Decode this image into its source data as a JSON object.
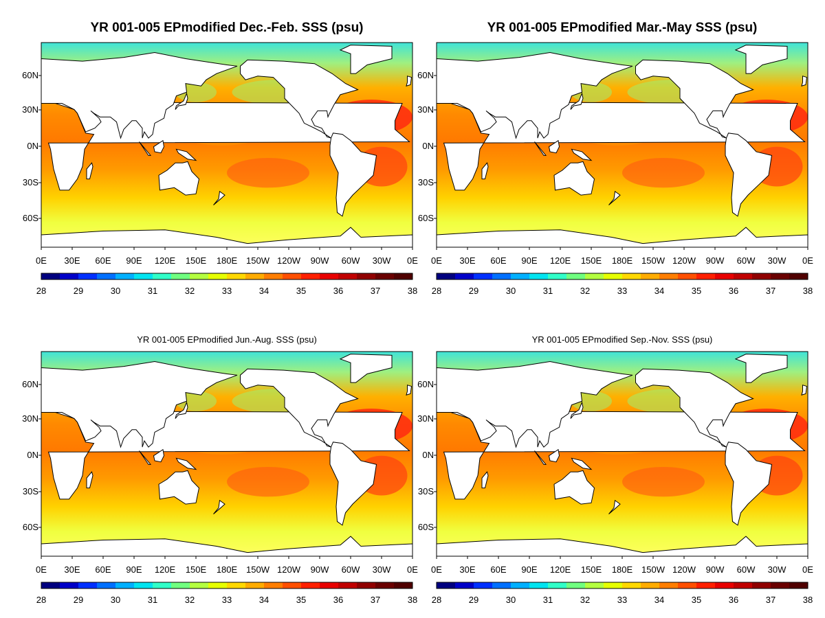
{
  "panels": [
    {
      "title": "YR 001-005 EPmodified Dec.-Feb. SSS (psu)",
      "title_style": "big"
    },
    {
      "title": "YR 001-005 EPmodified Mar.-May SSS (psu)",
      "title_style": "big"
    },
    {
      "title": "YR 001-005 EPmodified Jun.-Aug. SSS (psu)",
      "title_style": "small"
    },
    {
      "title": "YR 001-005 EPmodified Sep.-Nov. SSS (psu)",
      "title_style": "small"
    }
  ],
  "lat_ticks": [
    "60N",
    "30N",
    "0N",
    "30S",
    "60S"
  ],
  "lon_ticks": [
    "0E",
    "30E",
    "60E",
    "90E",
    "120E",
    "150E",
    "180E",
    "150W",
    "120W",
    "90W",
    "60W",
    "30W",
    "0E"
  ],
  "colorbar": {
    "labels": [
      "28",
      "29",
      "30",
      "31",
      "32",
      "33",
      "34",
      "35",
      "36",
      "37",
      "38"
    ],
    "colors": [
      "#00007f",
      "#0000c8",
      "#0030ff",
      "#0070ff",
      "#00b0ff",
      "#00e4f0",
      "#30ffc8",
      "#70ff80",
      "#b4ff40",
      "#e6ff00",
      "#ffd800",
      "#ffac00",
      "#ff7e00",
      "#ff5000",
      "#ff2000",
      "#e80000",
      "#c00000",
      "#900000",
      "#6a0000",
      "#500000"
    ]
  },
  "chart_data": {
    "type": "heatmap",
    "variable": "SSS (psu)",
    "colorbar_range": [
      28,
      38
    ],
    "lat_range": [
      -80,
      85
    ],
    "lon_range": [
      0,
      360
    ],
    "panels": [
      {
        "season": "Dec.-Feb.",
        "title": "YR 001-005 EPmodified Dec.-Feb. SSS (psu)"
      },
      {
        "season": "Mar.-May",
        "title": "YR 001-005 EPmodified Mar.-May SSS (psu)"
      },
      {
        "season": "Jun.-Aug.",
        "title": "YR 001-005 EPmodified Jun.-Aug. SSS (psu)"
      },
      {
        "season": "Sep.-Nov.",
        "title": "YR 001-005 EPmodified Sep.-Nov. SSS (psu)"
      }
    ]
  }
}
